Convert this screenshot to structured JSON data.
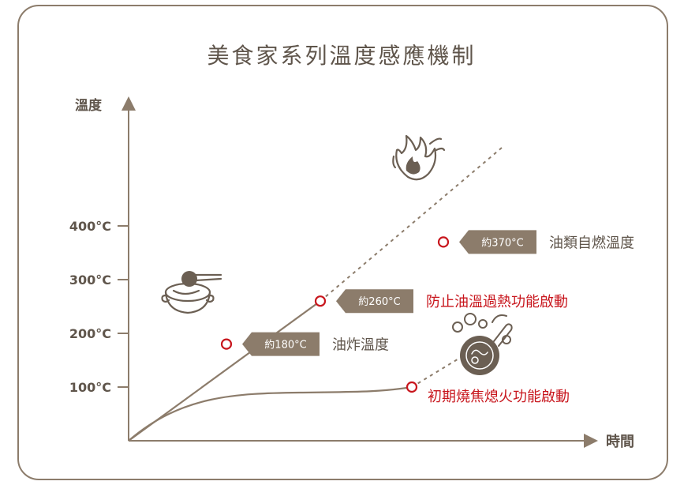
{
  "title": "美食家系列溫度感應機制",
  "colors": {
    "frame": "#8c7c6b",
    "axis": "#8c7c6b",
    "curve": "#8c7c6b",
    "text": "#5f554b",
    "accent": "#c8161d",
    "tag_fill": "#8c7c6b",
    "tag_text": "#ffffff",
    "icon": "#6b5f53",
    "dashed": "#8c7c6b"
  },
  "icons": {
    "fire": "fire-icon",
    "pot": "pot-with-chopsticks-icon",
    "pan": "pan-with-smoke-icon"
  },
  "chart_data": {
    "type": "line",
    "title": "美食家系列溫度感應機制",
    "xlabel": "時間",
    "ylabel": "溫度",
    "y_ticks": [
      "100°C",
      "200°C",
      "300°C",
      "400°C"
    ],
    "y_tick_values": [
      100,
      200,
      300,
      400
    ],
    "ylim": [
      0,
      440
    ],
    "grid": false,
    "series": [
      {
        "name": "",
        "values": [
          {
            "t": 0,
            "y": 0
          },
          {
            "t": 1,
            "y": 180
          },
          {
            "t": 2,
            "y": 260
          },
          {
            "t": 3,
            "y": 370
          }
        ],
        "solid_until_y": 260
      },
      {
        "name": "",
        "values": [
          {
            "t": 0,
            "y": 0
          },
          {
            "t": 1,
            "y": 65
          },
          {
            "t": 2,
            "y": 75
          },
          {
            "t": 3,
            "y": 82
          },
          {
            "t": 4,
            "y": 100
          }
        ],
        "solid_until_y": 100
      }
    ],
    "markers": [
      {
        "series": 0,
        "y": 180,
        "tag": "約180°C",
        "label": "油炸溫度",
        "emphasis": false
      },
      {
        "series": 0,
        "y": 260,
        "tag": "約260°C",
        "label": "防止油溫過熱功能啟動",
        "emphasis": true
      },
      {
        "series": 0,
        "y": 370,
        "tag": "約370°C",
        "label": "油類自燃溫度",
        "emphasis": false
      },
      {
        "series": 1,
        "y": 100,
        "tag": "",
        "label": "初期燒焦熄火功能啟動",
        "emphasis": true
      }
    ]
  }
}
